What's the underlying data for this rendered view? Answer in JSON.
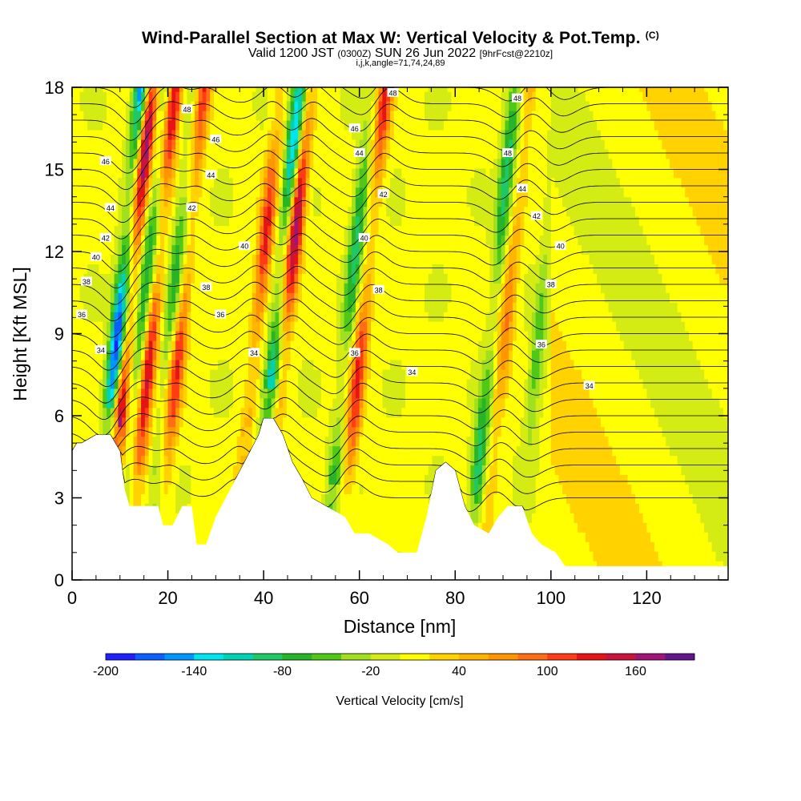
{
  "header": {
    "title": "Wind-Parallel Section at Max W: Vertical Velocity & Pot.Temp.",
    "copyright": "(C)",
    "valid_prefix": "Valid 1200 JST",
    "valid_utc": "(0300Z)",
    "valid_date": "SUN 26 Jun 2022",
    "forecast": "[9hrFcst@2210z]",
    "info": "i,j,k,angle=71,74,24,89"
  },
  "chart_data": {
    "type": "heatmap",
    "xlabel": "Distance [nm]",
    "ylabel": "Height [Kft MSL]",
    "xlim": [
      0,
      137
    ],
    "ylim": [
      0,
      18
    ],
    "x_ticks": [
      0,
      20,
      40,
      60,
      80,
      100,
      120
    ],
    "y_ticks": [
      0,
      3,
      6,
      9,
      12,
      15,
      18
    ],
    "colorbar": {
      "label": "Vertical Velocity [cm/s]",
      "tick_values": [
        -200,
        -140,
        -80,
        -20,
        40,
        100,
        160
      ],
      "range": [
        -200,
        200
      ],
      "colors": [
        "#1f1fff",
        "#0a5fff",
        "#0096ff",
        "#00e6f0",
        "#00d2b4",
        "#1ec864",
        "#28b428",
        "#50c818",
        "#a0e01e",
        "#d4ec14",
        "#ffff00",
        "#ffd200",
        "#ffb400",
        "#ff9600",
        "#ff6e14",
        "#ff3c14",
        "#e61414",
        "#c8143c",
        "#a01478",
        "#64148c"
      ]
    },
    "updraft_bands": [
      {
        "x": 11,
        "w_cm_s": 180
      },
      {
        "x": 16,
        "w_cm_s": 150
      },
      {
        "x": 22,
        "w_cm_s": 120
      },
      {
        "x": 38,
        "w_cm_s": 120
      },
      {
        "x": 44,
        "w_cm_s": 180
      },
      {
        "x": 60,
        "w_cm_s": 120
      },
      {
        "x": 90,
        "w_cm_s": 80
      }
    ],
    "downdraft_bands": [
      {
        "x": 9,
        "w_cm_s": -200
      },
      {
        "x": 14,
        "w_cm_s": -100
      },
      {
        "x": 20,
        "w_cm_s": -80
      },
      {
        "x": 42,
        "w_cm_s": -160
      },
      {
        "x": 57,
        "w_cm_s": -100
      },
      {
        "x": 87,
        "w_cm_s": -100
      },
      {
        "x": 97,
        "w_cm_s": -60
      }
    ],
    "terrain": [
      [
        0,
        4.7
      ],
      [
        1,
        5
      ],
      [
        2,
        5
      ],
      [
        5,
        5.3
      ],
      [
        8,
        5.3
      ],
      [
        10,
        4.7
      ],
      [
        11,
        3.3
      ],
      [
        12,
        2.7
      ],
      [
        18,
        2.7
      ],
      [
        19,
        2.0
      ],
      [
        21,
        2.0
      ],
      [
        23,
        2.7
      ],
      [
        25,
        2.7
      ],
      [
        26,
        1.3
      ],
      [
        28,
        1.3
      ],
      [
        30,
        2.3
      ],
      [
        33,
        3.3
      ],
      [
        36,
        4.3
      ],
      [
        39,
        5.3
      ],
      [
        40,
        5.9
      ],
      [
        42,
        5.9
      ],
      [
        44,
        5.3
      ],
      [
        46,
        4.3
      ],
      [
        48,
        3.7
      ],
      [
        50,
        3.0
      ],
      [
        53,
        2.7
      ],
      [
        57,
        2.3
      ],
      [
        59,
        1.7
      ],
      [
        62,
        1.7
      ],
      [
        66,
        1.3
      ],
      [
        68,
        1.0
      ],
      [
        72,
        1.0
      ],
      [
        74,
        2.3
      ],
      [
        76,
        4.0
      ],
      [
        78,
        4.3
      ],
      [
        80,
        4.0
      ],
      [
        82,
        2.7
      ],
      [
        84,
        2.0
      ],
      [
        87,
        1.7
      ],
      [
        89,
        2.3
      ],
      [
        91,
        2.7
      ],
      [
        94,
        2.7
      ],
      [
        96,
        1.7
      ],
      [
        98,
        1.3
      ],
      [
        101,
        1.0
      ],
      [
        103,
        0.5
      ],
      [
        137,
        0.5
      ]
    ],
    "contour_labels": [
      {
        "text": "34",
        "x": 6,
        "y": 8.4
      },
      {
        "text": "36",
        "x": 2,
        "y": 9.7
      },
      {
        "text": "38",
        "x": 3,
        "y": 10.9
      },
      {
        "text": "40",
        "x": 5,
        "y": 11.8
      },
      {
        "text": "42",
        "x": 7,
        "y": 12.5
      },
      {
        "text": "44",
        "x": 8,
        "y": 13.6
      },
      {
        "text": "46",
        "x": 7,
        "y": 15.3
      },
      {
        "text": "48",
        "x": 24,
        "y": 17.2
      },
      {
        "text": "46",
        "x": 30,
        "y": 16.1
      },
      {
        "text": "44",
        "x": 29,
        "y": 14.8
      },
      {
        "text": "42",
        "x": 25,
        "y": 13.6
      },
      {
        "text": "40",
        "x": 36,
        "y": 12.2
      },
      {
        "text": "38",
        "x": 28,
        "y": 10.7
      },
      {
        "text": "36",
        "x": 31,
        "y": 9.7
      },
      {
        "text": "34",
        "x": 38,
        "y": 8.3
      },
      {
        "text": "48",
        "x": 67,
        "y": 17.8
      },
      {
        "text": "46",
        "x": 59,
        "y": 16.5
      },
      {
        "text": "44",
        "x": 60,
        "y": 15.6
      },
      {
        "text": "42",
        "x": 65,
        "y": 14.1
      },
      {
        "text": "40",
        "x": 61,
        "y": 12.5
      },
      {
        "text": "38",
        "x": 64,
        "y": 10.6
      },
      {
        "text": "36",
        "x": 59,
        "y": 8.3
      },
      {
        "text": "34",
        "x": 71,
        "y": 7.6
      },
      {
        "text": "48",
        "x": 93,
        "y": 17.6
      },
      {
        "text": "48",
        "x": 91,
        "y": 15.6
      },
      {
        "text": "44",
        "x": 94,
        "y": 14.3
      },
      {
        "text": "42",
        "x": 97,
        "y": 13.3
      },
      {
        "text": "40",
        "x": 102,
        "y": 12.2
      },
      {
        "text": "38",
        "x": 100,
        "y": 10.8
      },
      {
        "text": "36",
        "x": 98,
        "y": 8.6
      },
      {
        "text": "34",
        "x": 108,
        "y": 7.1
      }
    ]
  }
}
